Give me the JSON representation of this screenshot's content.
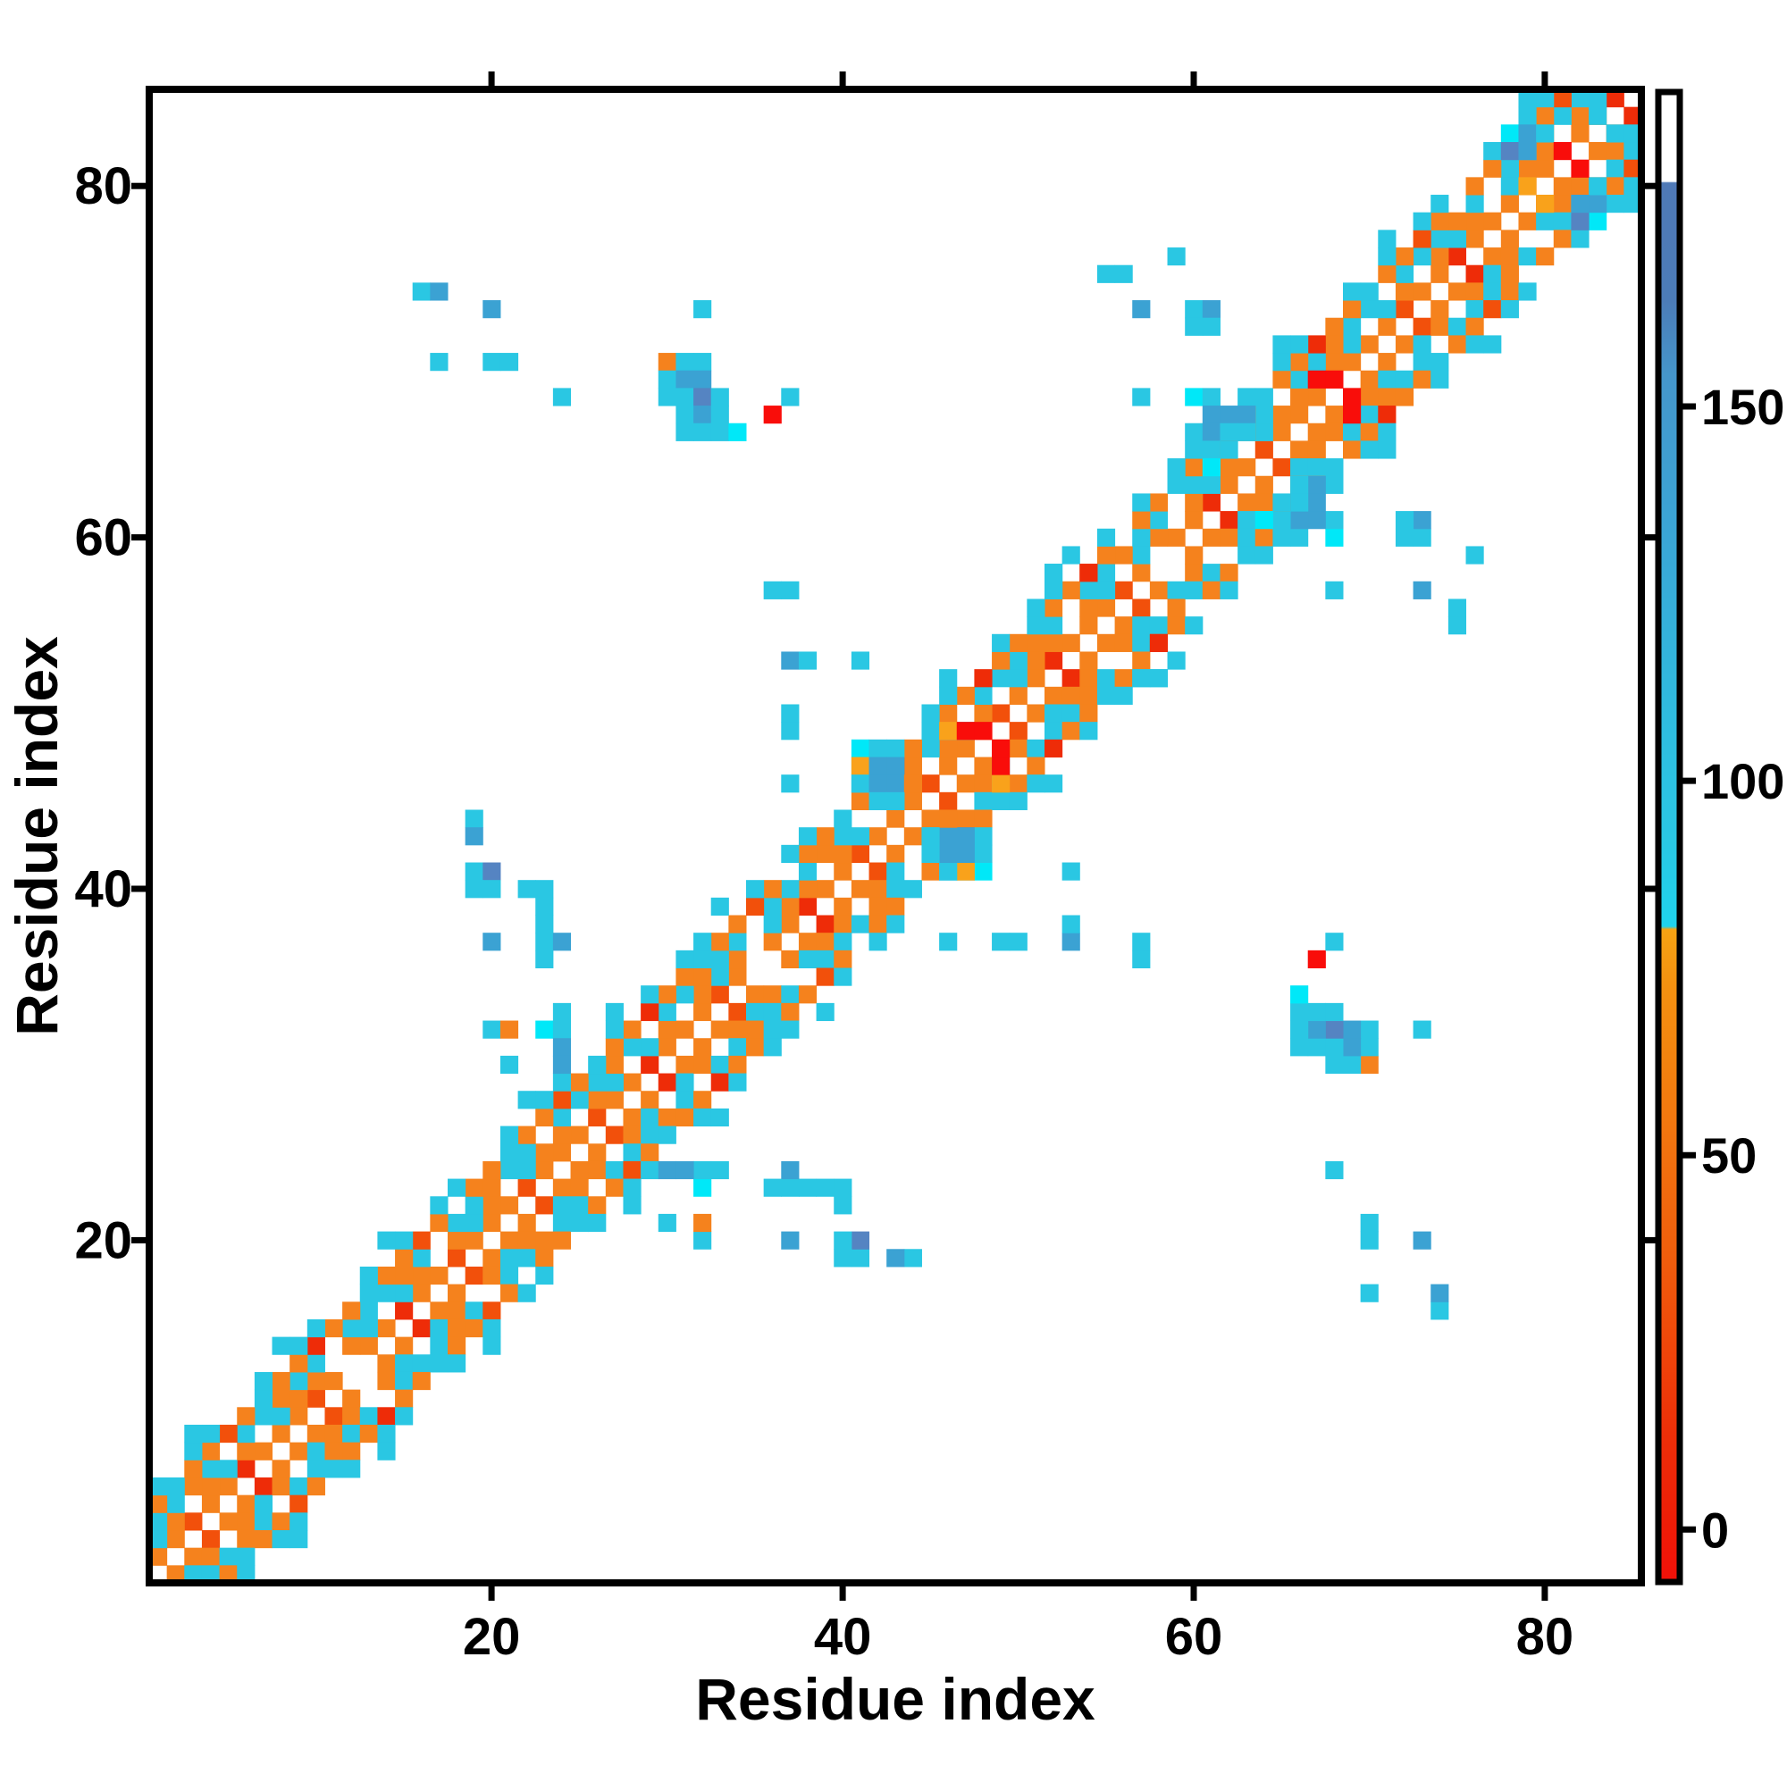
{
  "figure": {
    "kind": "protein residue contact map heatmap",
    "background": "#ffffff",
    "frame_color": "#000000"
  },
  "chart_data": {
    "type": "heatmap",
    "title": "",
    "xlabel": "Residue index",
    "ylabel": "Residue index",
    "n": 85,
    "x_range": [
      1,
      85
    ],
    "y_range": [
      1,
      85
    ],
    "x_ticks": [
      20,
      40,
      60,
      80
    ],
    "y_ticks": [
      20,
      40,
      60,
      80
    ],
    "grid": "off",
    "symmetric": true,
    "diagonal": "white",
    "palette": {
      "o": "#F5821D",
      "y": "#F9A21B",
      "O": "#F2500B",
      "r": "#EE2C08",
      "R": "#F90D0A",
      "c": "#2AC7E3",
      "C": "#00E8F8",
      "s": "#3BA2D3",
      "S": "#5584C2"
    },
    "band": [
      {
        "offset": 1,
        "from": 1,
        "to": 84,
        "cycle": [
          "o",
          "o",
          "O",
          "o",
          "o",
          "r",
          "o",
          "o",
          "o",
          "O",
          "o",
          "w",
          "o",
          "o",
          "r",
          "o",
          "o",
          "O",
          "o",
          "o",
          "o",
          "O",
          "o"
        ]
      },
      {
        "offset": 2,
        "from": 1,
        "to": 83,
        "cycle": [
          "c",
          "o",
          "w",
          "o",
          "c",
          "o",
          "w",
          "c",
          "o",
          "o",
          "w",
          "o",
          "c",
          "w"
        ]
      },
      {
        "offset": 3,
        "from": 1,
        "to": 82,
        "cycle": [
          "c",
          "c",
          "o",
          "c",
          "w",
          "c",
          "c",
          "o",
          "c",
          "c",
          "w",
          "c"
        ]
      },
      {
        "offset": 4,
        "from": 1,
        "to": 81,
        "cycle": [
          "o",
          "c",
          "o",
          "o",
          "O",
          "o",
          "c",
          "o",
          "o",
          "r",
          "o",
          "o",
          "c",
          "o",
          "o",
          "O",
          "o",
          "w",
          "o"
        ]
      },
      {
        "offset": 5,
        "from": 1,
        "to": 80,
        "cycle": [
          "c",
          "w",
          "c",
          "c",
          "w",
          "w",
          "c",
          "w",
          "c",
          "c",
          "w",
          "w",
          "c",
          "w"
        ]
      },
      {
        "offset": 6,
        "from": 1,
        "to": 79,
        "cycle": [
          "w",
          "w",
          "c",
          "w",
          "w",
          "w",
          "w",
          "c",
          "w",
          "w",
          "w",
          "w",
          "w",
          "c",
          "w",
          "w",
          "w",
          "w",
          "w"
        ]
      }
    ],
    "cells": [
      [
        16,
        74,
        "c"
      ],
      [
        17,
        74,
        "s"
      ],
      [
        20,
        73,
        "s"
      ],
      [
        17,
        70,
        "c"
      ],
      [
        20,
        70,
        "c"
      ],
      [
        21,
        70,
        "c"
      ],
      [
        32,
        73,
        "c"
      ],
      [
        24,
        68,
        "c"
      ],
      [
        30,
        70,
        "o"
      ],
      [
        31,
        70,
        "c"
      ],
      [
        32,
        70,
        "c"
      ],
      [
        30,
        69,
        "c"
      ],
      [
        31,
        69,
        "s"
      ],
      [
        32,
        69,
        "s"
      ],
      [
        30,
        68,
        "c"
      ],
      [
        31,
        68,
        "c"
      ],
      [
        32,
        68,
        "S"
      ],
      [
        33,
        68,
        "c"
      ],
      [
        31,
        67,
        "c"
      ],
      [
        32,
        67,
        "s"
      ],
      [
        33,
        67,
        "c"
      ],
      [
        31,
        66,
        "c"
      ],
      [
        32,
        66,
        "c"
      ],
      [
        33,
        66,
        "c"
      ],
      [
        34,
        66,
        "C"
      ],
      [
        36,
        67,
        "R"
      ],
      [
        37,
        68,
        "c"
      ],
      [
        19,
        44,
        "c"
      ],
      [
        19,
        43,
        "s"
      ],
      [
        19,
        41,
        "c"
      ],
      [
        20,
        41,
        "S"
      ],
      [
        19,
        40,
        "c"
      ],
      [
        20,
        40,
        "c"
      ],
      [
        22,
        40,
        "c"
      ],
      [
        23,
        40,
        "c"
      ],
      [
        23,
        39,
        "c"
      ],
      [
        23,
        38,
        "c"
      ],
      [
        23,
        37,
        "c"
      ],
      [
        24,
        37,
        "s"
      ],
      [
        23,
        36,
        "c"
      ],
      [
        20,
        37,
        "s"
      ],
      [
        20,
        32,
        "c"
      ],
      [
        21,
        32,
        "o"
      ],
      [
        23,
        32,
        "C"
      ],
      [
        24,
        33,
        "c"
      ],
      [
        24,
        32,
        "c"
      ],
      [
        24,
        31,
        "s"
      ],
      [
        24,
        30,
        "s"
      ],
      [
        21,
        30,
        "c"
      ],
      [
        36,
        57,
        "c"
      ],
      [
        37,
        57,
        "c"
      ],
      [
        37,
        53,
        "s"
      ],
      [
        38,
        53,
        "c"
      ],
      [
        41,
        53,
        "c"
      ],
      [
        37,
        50,
        "c"
      ],
      [
        37,
        49,
        "c"
      ],
      [
        37,
        46,
        "c"
      ],
      [
        41,
        48,
        "C"
      ],
      [
        42,
        48,
        "c"
      ],
      [
        41,
        47,
        "y"
      ],
      [
        42,
        47,
        "s"
      ],
      [
        43,
        47,
        "s"
      ],
      [
        41,
        46,
        "c"
      ],
      [
        42,
        46,
        "s"
      ],
      [
        43,
        46,
        "s"
      ],
      [
        44,
        46,
        "o"
      ],
      [
        42,
        45,
        "c"
      ],
      [
        43,
        45,
        "c"
      ],
      [
        46,
        49,
        "y"
      ],
      [
        47,
        49,
        "R"
      ],
      [
        48,
        49,
        "R"
      ],
      [
        52,
        58,
        "c"
      ],
      [
        53,
        59,
        "c"
      ],
      [
        54,
        58,
        "r"
      ],
      [
        52,
        57,
        "c"
      ],
      [
        55,
        75,
        "c"
      ],
      [
        56,
        75,
        "c"
      ],
      [
        59,
        76,
        "c"
      ],
      [
        57,
        73,
        "s"
      ],
      [
        60,
        73,
        "c"
      ],
      [
        61,
        73,
        "s"
      ],
      [
        60,
        72,
        "c"
      ],
      [
        61,
        72,
        "c"
      ],
      [
        57,
        68,
        "c"
      ],
      [
        60,
        68,
        "C"
      ],
      [
        61,
        68,
        "c"
      ],
      [
        61,
        67,
        "s"
      ],
      [
        62,
        67,
        "s"
      ],
      [
        63,
        67,
        "s"
      ],
      [
        61,
        66,
        "s"
      ],
      [
        62,
        66,
        "c"
      ],
      [
        63,
        66,
        "c"
      ],
      [
        61,
        65,
        "c"
      ],
      [
        61,
        64,
        "C"
      ],
      [
        67,
        69,
        "R"
      ],
      [
        68,
        69,
        "R"
      ],
      [
        78,
        83,
        "C"
      ],
      [
        79,
        83,
        "s"
      ],
      [
        80,
        83,
        "c"
      ],
      [
        78,
        82,
        "S"
      ],
      [
        79,
        82,
        "s"
      ],
      [
        81,
        82,
        "R"
      ],
      [
        79,
        80,
        "y"
      ],
      [
        83,
        84,
        "c"
      ]
    ],
    "colorbar": {
      "ticks": [
        0,
        50,
        100,
        150
      ],
      "tick_labels": [
        "0",
        "50",
        "100",
        "150"
      ],
      "value_at_top": 192,
      "value_at_bottom": -7,
      "gradient_top_to_bottom": [
        {
          "pos": 0.0,
          "color": "#FFFFFF"
        },
        {
          "pos": 0.06,
          "color": "#FFFFFF"
        },
        {
          "pos": 0.061,
          "color": "#4F79B6"
        },
        {
          "pos": 0.14,
          "color": "#4C7CB8"
        },
        {
          "pos": 0.19,
          "color": "#4596CB"
        },
        {
          "pos": 0.3,
          "color": "#3AA6D6"
        },
        {
          "pos": 0.42,
          "color": "#2FBCDF"
        },
        {
          "pos": 0.5,
          "color": "#2AC7E4"
        },
        {
          "pos": 0.56,
          "color": "#1FD3EC"
        },
        {
          "pos": 0.562,
          "color": "#F6A313"
        },
        {
          "pos": 0.6,
          "color": "#F49110"
        },
        {
          "pos": 0.65,
          "color": "#F3830F"
        },
        {
          "pos": 0.713,
          "color": "#F1710F"
        },
        {
          "pos": 0.78,
          "color": "#F05E0C"
        },
        {
          "pos": 0.84,
          "color": "#EF470A"
        },
        {
          "pos": 0.9,
          "color": "#EE2F08"
        },
        {
          "pos": 0.96,
          "color": "#EE1D07"
        },
        {
          "pos": 1.0,
          "color": "#F31008"
        }
      ]
    }
  }
}
